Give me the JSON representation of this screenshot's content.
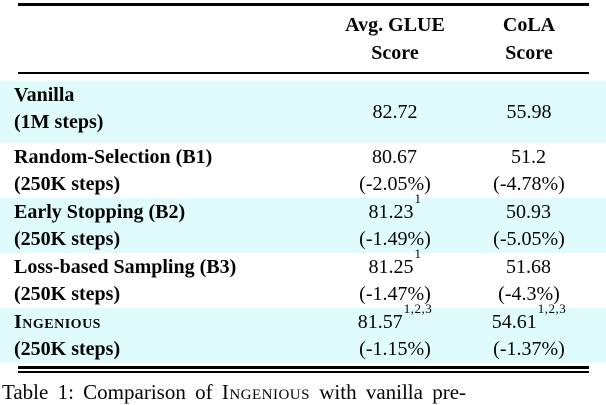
{
  "colors": {
    "row_highlight": "#DFFBFB",
    "text": "#050505",
    "rule": "#000000",
    "background": "#FFFFFF"
  },
  "table": {
    "header": {
      "glue_label_line1": "Avg. GLUE",
      "glue_label_line2": "Score",
      "cola_label_line1": "CoLA",
      "cola_label_line2": "Score"
    },
    "rows": [
      {
        "name": "Vanilla",
        "steps": "(1M steps)",
        "highlighted": true,
        "glue": {
          "value": "82.72",
          "sup": "",
          "pct": ""
        },
        "cola": {
          "value": "55.98",
          "sup": "",
          "pct": ""
        }
      },
      {
        "name": "Random-Selection (B1)",
        "steps": "(250K steps)",
        "highlighted": false,
        "glue": {
          "value": "80.67",
          "sup": "",
          "pct": "(-2.05%)"
        },
        "cola": {
          "value": "51.2",
          "sup": "",
          "pct": "(-4.78%)"
        }
      },
      {
        "name": "Early Stopping (B2)",
        "steps": "(250K steps)",
        "highlighted": true,
        "glue": {
          "value": "81.23",
          "sup": "1",
          "pct": "(-1.49%)"
        },
        "cola": {
          "value": "50.93",
          "sup": "",
          "pct": "(-5.05%)"
        }
      },
      {
        "name": "Loss-based Sampling (B3)",
        "steps": "(250K steps)",
        "highlighted": false,
        "glue": {
          "value": "81.25",
          "sup": "1",
          "pct": "(-1.47%)"
        },
        "cola": {
          "value": "51.68",
          "sup": "",
          "pct": "(-4.3%)"
        }
      },
      {
        "name": "Ingenious",
        "steps": "(250K steps)",
        "highlighted": true,
        "glue": {
          "value": "81.57",
          "sup": "1,2,3",
          "pct": "(-1.15%)"
        },
        "cola": {
          "value": "54.61",
          "sup": "1,2,3",
          "pct": "(-1.37%)"
        }
      }
    ]
  },
  "caption": {
    "prefix": "Table 1: Comparison of ",
    "smallcaps": "Ingenious",
    "suffix": " with vanilla pre-"
  }
}
